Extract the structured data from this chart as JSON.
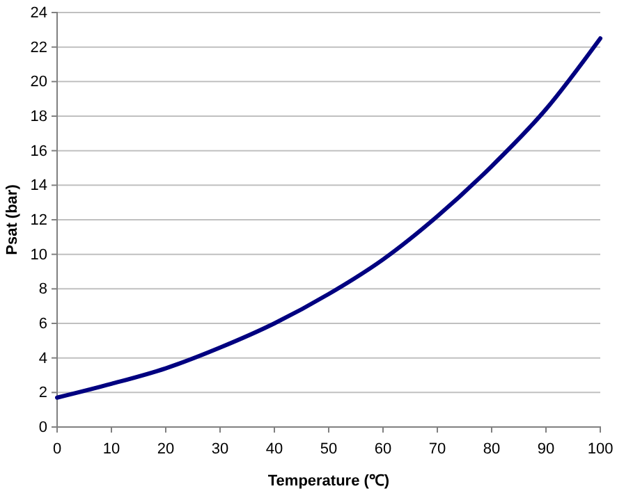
{
  "chart_data": {
    "type": "line",
    "xlabel": "Temperature (℃)",
    "ylabel": "Psat (bar)",
    "x": [
      0,
      10,
      20,
      30,
      40,
      50,
      60,
      70,
      80,
      90,
      100
    ],
    "series": [
      {
        "color": "#000080",
        "values": [
          1.7,
          2.5,
          3.4,
          4.6,
          6.0,
          7.7,
          9.7,
          12.2,
          15.1,
          18.4,
          22.5
        ]
      }
    ],
    "xlim": [
      0,
      100
    ],
    "xticks": [
      0,
      10,
      20,
      30,
      40,
      50,
      60,
      70,
      80,
      90,
      100
    ],
    "ylim": [
      0,
      24
    ],
    "yticks": [
      0,
      2,
      4,
      6,
      8,
      10,
      12,
      14,
      16,
      18,
      20,
      22,
      24
    ],
    "grid": "y",
    "marker": "none",
    "line_style": "solid"
  }
}
